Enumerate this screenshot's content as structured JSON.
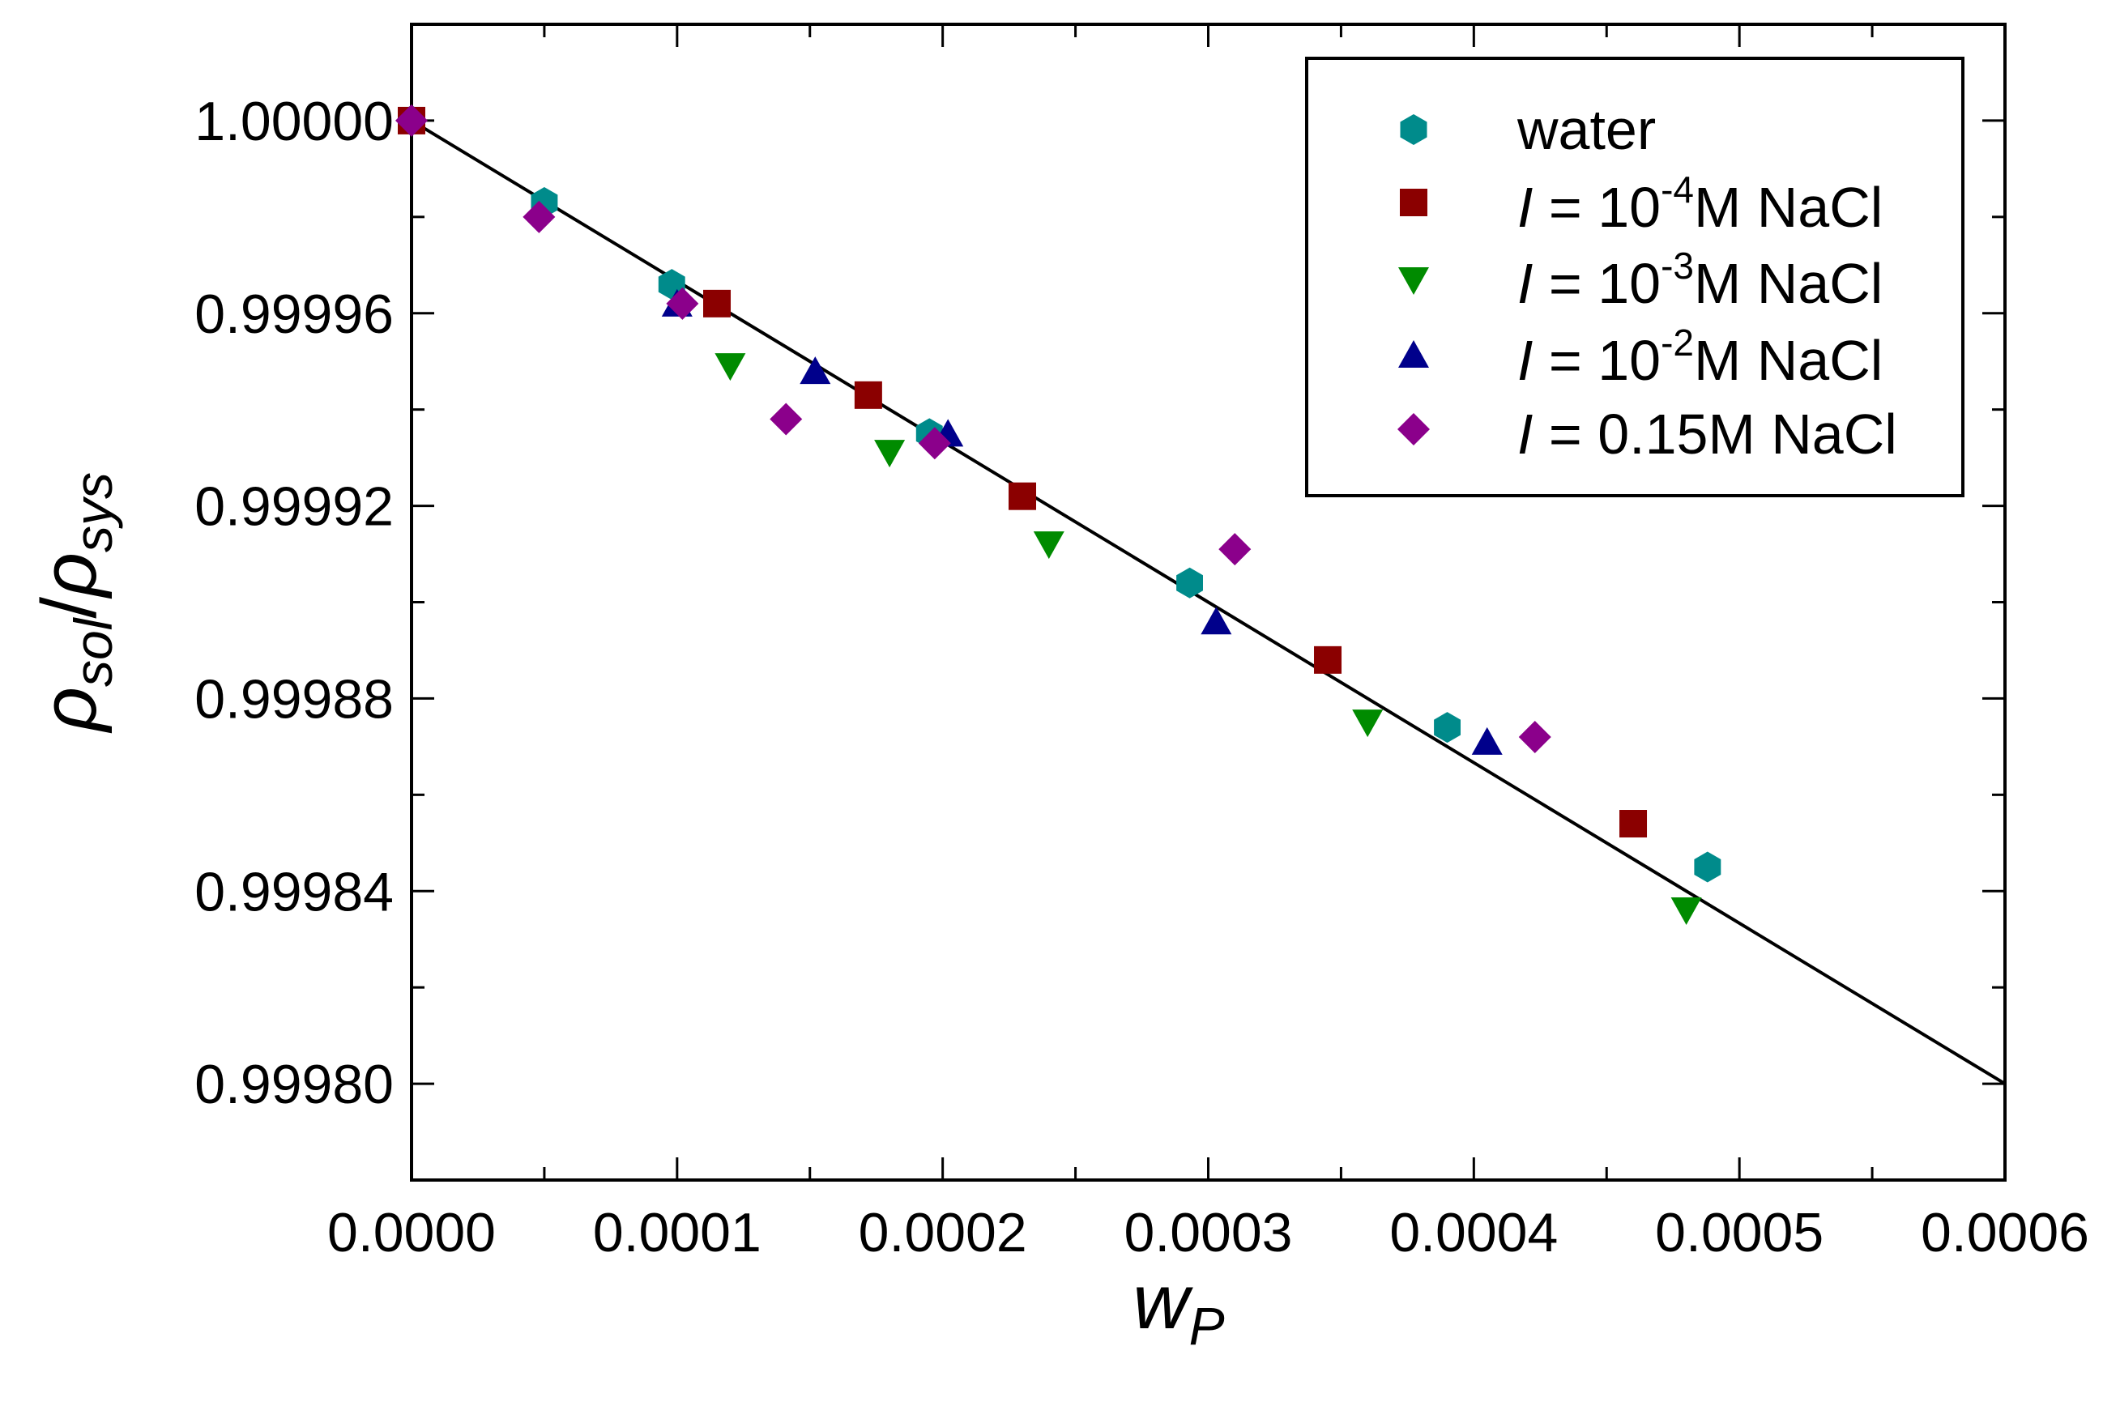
{
  "chart_data": {
    "type": "scatter",
    "title": "",
    "xlabel": {
      "main": "w",
      "sub": "P"
    },
    "ylabel": {
      "main1": "ρ",
      "sub1": "sol",
      "slash": "/",
      "main2": "ρ",
      "sub2": "sys"
    },
    "xlim": [
      0.0,
      0.0006
    ],
    "ylim": [
      0.99978,
      1.00002
    ],
    "x_ticks": [
      0.0,
      0.0001,
      0.0002,
      0.0003,
      0.0004,
      0.0005,
      0.0006
    ],
    "x_tick_labels": [
      "0.0000",
      "0.0001",
      "0.0002",
      "0.0003",
      "0.0004",
      "0.0005",
      "0.0006"
    ],
    "y_ticks": [
      0.9998,
      0.99984,
      0.99988,
      0.99992,
      0.99996,
      1.0
    ],
    "y_tick_labels": [
      "0.99980",
      "0.99984",
      "0.99988",
      "0.99992",
      "0.99996",
      "1.00000"
    ],
    "legend_position": "top-right",
    "fit_line": {
      "x": [
        0.0,
        0.0006
      ],
      "y": [
        1.0,
        0.9998
      ]
    },
    "series": [
      {
        "name": "water",
        "legend": {
          "italic": "",
          "pre": "water",
          "sup": "",
          "post": ""
        },
        "marker": "hexagon",
        "color": "#008b8b",
        "x": [
          0.0,
          5e-05,
          9.8e-05,
          0.000195,
          0.000293,
          0.00039,
          0.000488
        ],
        "y": [
          1.0,
          0.999983,
          0.999966,
          0.999935,
          0.999904,
          0.999874,
          0.999845
        ]
      },
      {
        "name": "I = 10-4M NaCl",
        "legend": {
          "italic": "I",
          "pre": " = 10",
          "sup": "-4",
          "post": "M NaCl"
        },
        "marker": "square",
        "color": "#8b0000",
        "x": [
          0.0,
          0.000115,
          0.000172,
          0.00023,
          0.000345,
          0.00046
        ],
        "y": [
          1.0,
          0.999962,
          0.999943,
          0.999922,
          0.999888,
          0.999854
        ]
      },
      {
        "name": "I = 10-3M NaCl",
        "legend": {
          "italic": "I",
          "pre": " = 10",
          "sup": "-3",
          "post": "M NaCl"
        },
        "marker": "triangle-down",
        "color": "#008b00",
        "x": [
          0.00012,
          0.00018,
          0.00024,
          0.00036,
          0.00048
        ],
        "y": [
          0.999949,
          0.999931,
          0.999912,
          0.999875,
          0.999836
        ]
      },
      {
        "name": "I = 10-2M NaCl",
        "legend": {
          "italic": "I",
          "pre": " = 10",
          "sup": "-2",
          "post": "M NaCl"
        },
        "marker": "triangle-up",
        "color": "#00008b",
        "x": [
          0.0001,
          0.000152,
          0.000202,
          0.000303,
          0.000405
        ],
        "y": [
          0.999962,
          0.999948,
          0.999935,
          0.999896,
          0.999871
        ]
      },
      {
        "name": "I = 0.15M NaCl",
        "legend": {
          "italic": "I",
          "pre": " = 0.15M NaCl",
          "sup": "",
          "post": ""
        },
        "marker": "diamond",
        "color": "#8b008b",
        "x": [
          0.0,
          4.8e-05,
          0.000102,
          0.000141,
          0.000197,
          0.00031,
          0.000423
        ],
        "y": [
          1.0,
          0.99998,
          0.999962,
          0.999938,
          0.999933,
          0.999911,
          0.999872
        ]
      }
    ]
  }
}
